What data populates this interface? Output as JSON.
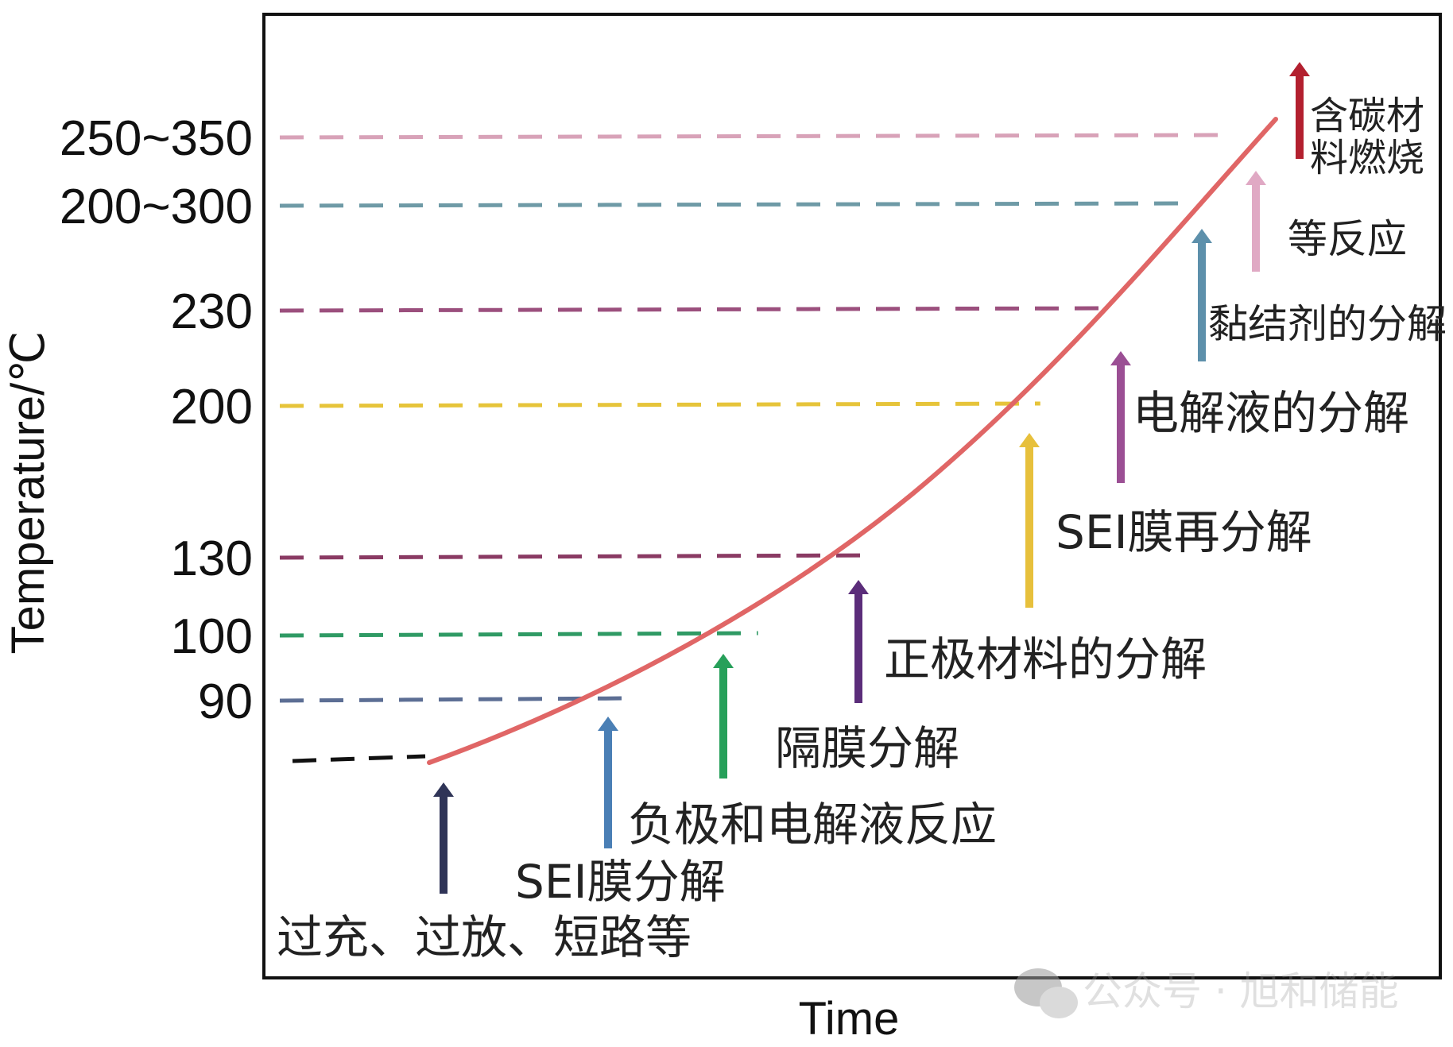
{
  "chart_data": {
    "type": "line",
    "xlabel": "Time",
    "ylabel": "Temperature/℃",
    "y_tick_labels": [
      {
        "label": "250~350",
        "color": "#d8a2b8",
        "line_end": 0.815
      },
      {
        "label": "200~300",
        "color": "#6e9aa6",
        "line_end": 0.785
      },
      {
        "label": "230",
        "color": "#9b4f7d",
        "line_end": 0.72
      },
      {
        "label": "200",
        "color": "#e6c43a",
        "line_end": 0.66
      },
      {
        "label": "130",
        "color": "#8a3a63",
        "line_end": 0.52
      },
      {
        "label": "100",
        "color": "#2f9a64",
        "line_end": 0.42
      },
      {
        "label": "90",
        "color": "#5c6e94",
        "line_end": 0.31
      }
    ],
    "start_marker_color": "#111111",
    "curve_color": "#e06666",
    "events": [
      {
        "label": "过充、过放、短路等",
        "color": "#2f3457"
      },
      {
        "label": "SEI膜分解",
        "color": "#4a7fb5"
      },
      {
        "label": "负极和电解液反应",
        "color": "#27a05a"
      },
      {
        "label": "隔膜分解",
        "color": "#27a05a"
      },
      {
        "label": "正极材料的分解",
        "color": "#5b2d7a"
      },
      {
        "label": "SEI膜再分解",
        "color": "#e7c03c"
      },
      {
        "label": "电解液的分解",
        "color": "#9b4f94"
      },
      {
        "label": "黏结剂的分解",
        "color": "#5d90ab"
      },
      {
        "label": "等反应",
        "color": "#e0a9c4"
      },
      {
        "label": "含碳材",
        "color": "#b3202f"
      },
      {
        "label": "料燃烧",
        "color": "#b3202f"
      }
    ]
  },
  "watermark": {
    "text": "公众号 · 旭和储能"
  }
}
